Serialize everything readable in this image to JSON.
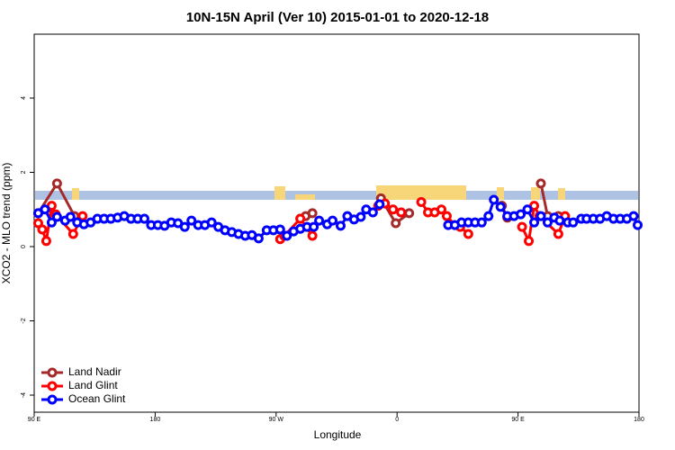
{
  "chart_data": {
    "type": "line",
    "title": "10N-15N April (Ver 10)   2015-01-01 to 2020-12-18",
    "xlabel": "Longitude",
    "ylabel": "XCO2 - MLO trend (ppm)",
    "xlim": [
      90,
      540
    ],
    "ylim": [
      -4.46,
      5.72
    ],
    "xticks": [
      {
        "value": 90,
        "label": "90 E"
      },
      180,
      {
        "value": 270,
        "label": "90 W"
      },
      {
        "value": 360,
        "label": "0"
      },
      {
        "value": 450,
        "label": "90 E"
      },
      {
        "value": 540,
        "label": "180"
      }
    ],
    "yticks": [
      -4,
      -2,
      0,
      2,
      4
    ],
    "legend": "bottom-left",
    "series": [
      {
        "name": "Land Nadir",
        "color": "#a52a2a",
        "x": [
          93,
          107,
          120,
          200,
          288,
          292,
          297,
          330,
          348,
          359,
          369,
          420,
          438,
          442,
          460,
          467,
          472,
          480
        ],
        "values": [
          0.9,
          1.7,
          0.82,
          null,
          0.75,
          0.82,
          0.9,
          null,
          1.3,
          0.63,
          0.9,
          null,
          1.1,
          0.78,
          null,
          1.7,
          0.82,
          0.82
        ]
      },
      {
        "name": "Land Glint",
        "color": "#ff0000",
        "x": [
          93,
          96,
          99,
          103,
          106,
          119,
          126,
          200,
          273,
          276,
          288,
          297,
          320,
          346,
          351,
          357,
          363,
          370,
          378,
          383,
          388,
          393,
          397,
          403,
          407,
          413,
          430,
          453,
          458,
          462,
          466,
          480,
          485
        ],
        "values": [
          0.63,
          0.46,
          0.15,
          1.1,
          0.87,
          0.34,
          0.82,
          null,
          0.2,
          0.29,
          0.75,
          0.29,
          null,
          1.1,
          1.16,
          1.0,
          0.92,
          null,
          1.2,
          0.92,
          0.92,
          1.0,
          0.82,
          0.58,
          0.53,
          0.34,
          null,
          0.53,
          0.15,
          1.1,
          0.82,
          0.34,
          0.82
        ]
      },
      {
        "name": "Ocean Glint",
        "color": "#0000ff",
        "x": [
          93,
          98,
          103,
          107,
          113,
          117,
          122,
          127,
          132,
          137,
          142,
          147,
          152,
          157,
          162,
          167,
          172,
          177,
          182,
          187,
          192,
          197,
          202,
          207,
          212,
          217,
          222,
          227,
          232,
          237,
          242,
          247,
          252,
          257,
          263,
          268,
          273,
          278,
          283,
          288,
          293,
          298,
          302,
          308,
          312,
          318,
          323,
          328,
          333,
          337,
          342,
          347,
          380,
          398,
          403,
          408,
          413,
          418,
          423,
          428,
          432,
          437,
          442,
          447,
          452,
          457,
          462,
          467,
          472,
          477,
          481,
          487,
          491,
          497,
          501,
          506,
          511,
          516,
          521,
          526,
          531,
          536,
          539
        ],
        "values": [
          0.9,
          1.0,
          0.65,
          0.8,
          0.7,
          0.8,
          0.65,
          0.6,
          0.65,
          0.75,
          0.75,
          0.75,
          0.78,
          0.82,
          0.75,
          0.75,
          0.75,
          0.58,
          0.58,
          0.56,
          0.65,
          0.63,
          0.53,
          0.7,
          0.58,
          0.58,
          0.65,
          0.53,
          0.44,
          0.39,
          0.34,
          0.29,
          0.31,
          0.22,
          0.44,
          0.44,
          0.46,
          0.29,
          0.41,
          0.48,
          0.53,
          0.53,
          0.7,
          0.6,
          0.7,
          0.56,
          0.82,
          0.73,
          0.8,
          1.0,
          0.92,
          1.14,
          null,
          0.58,
          0.58,
          0.65,
          0.65,
          0.65,
          0.65,
          0.82,
          1.26,
          1.07,
          0.82,
          0.82,
          0.87,
          1.0,
          0.65,
          0.82,
          0.65,
          0.78,
          0.7,
          0.65,
          0.65,
          0.75,
          0.75,
          0.75,
          0.75,
          0.82,
          0.75,
          0.75,
          0.75,
          0.82,
          0.58
        ]
      }
    ]
  }
}
